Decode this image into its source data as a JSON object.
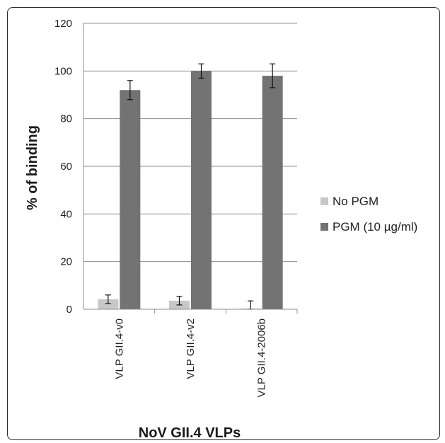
{
  "chart_data": {
    "type": "bar",
    "title": "",
    "xlabel": "NoV GII.4 VLPs",
    "ylabel": "% of binding",
    "ylim": [
      0,
      120
    ],
    "yticks": [
      0,
      20,
      40,
      60,
      80,
      100,
      120
    ],
    "categories": [
      "VLP GII.4-v0",
      "VLP GII.4-v2",
      "VLP GII.4-2006b"
    ],
    "series": [
      {
        "name": "No PGM",
        "color": "#c8c8c8",
        "values": [
          4.2,
          3.6,
          0.3
        ],
        "errors": [
          1.8,
          1.8,
          3.2
        ]
      },
      {
        "name": "PGM (10 µg/ml)",
        "color": "#737373",
        "values": [
          92,
          100,
          98
        ],
        "errors": [
          4,
          3,
          5
        ]
      }
    ],
    "grid": true,
    "legend": "right"
  }
}
